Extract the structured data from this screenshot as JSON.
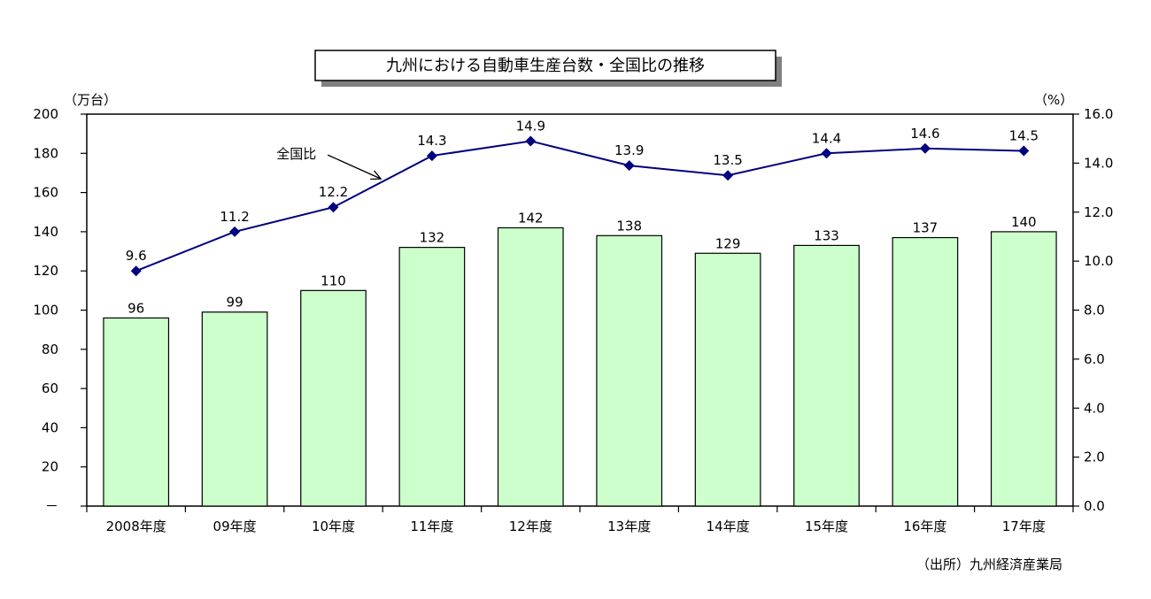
{
  "chart_data": {
    "type": "bar+line",
    "title": "九州における自動車生産台数・全国比の推移",
    "categories": [
      "2008年度",
      "09年度",
      "10年度",
      "11年度",
      "12年度",
      "13年度",
      "14年度",
      "15年度",
      "16年度",
      "17年度"
    ],
    "series": [
      {
        "type": "bar",
        "axis": "left",
        "values": [
          96,
          99,
          110,
          132,
          142,
          138,
          129,
          133,
          137,
          140
        ],
        "color": "#ccffcc",
        "value_labels": [
          "96",
          "99",
          "110",
          "132",
          "142",
          "138",
          "129",
          "133",
          "137",
          "140"
        ]
      },
      {
        "name": "全国比",
        "type": "line",
        "axis": "right",
        "values": [
          9.6,
          11.2,
          12.2,
          14.3,
          14.9,
          13.9,
          13.5,
          14.4,
          14.6,
          14.5
        ],
        "color": "#000080",
        "marker": "diamond",
        "value_labels": [
          "9.6",
          "11.2",
          "12.2",
          "14.3",
          "14.9",
          "13.9",
          "13.5",
          "14.4",
          "14.6",
          "14.5"
        ]
      }
    ],
    "y_left": {
      "label": "（万台）",
      "ylim": [
        0,
        200
      ],
      "ticks": [
        0,
        20,
        40,
        60,
        80,
        100,
        120,
        140,
        160,
        180,
        200
      ],
      "tick_labels": [
        "－",
        "20",
        "40",
        "60",
        "80",
        "100",
        "120",
        "140",
        "160",
        "180",
        "200"
      ]
    },
    "y_right": {
      "label": "（%）",
      "ylim": [
        0,
        16
      ],
      "ticks": [
        0,
        2,
        4,
        6,
        8,
        10,
        12,
        14,
        16
      ],
      "tick_labels": [
        "0.0",
        "2.0",
        "4.0",
        "6.0",
        "8.0",
        "10.0",
        "12.0",
        "14.0",
        "16.0"
      ]
    },
    "grid": false,
    "annotation": {
      "text": "全国比",
      "points_to_category_index": 2.5
    },
    "source": "（出所）九州経済産業局"
  }
}
